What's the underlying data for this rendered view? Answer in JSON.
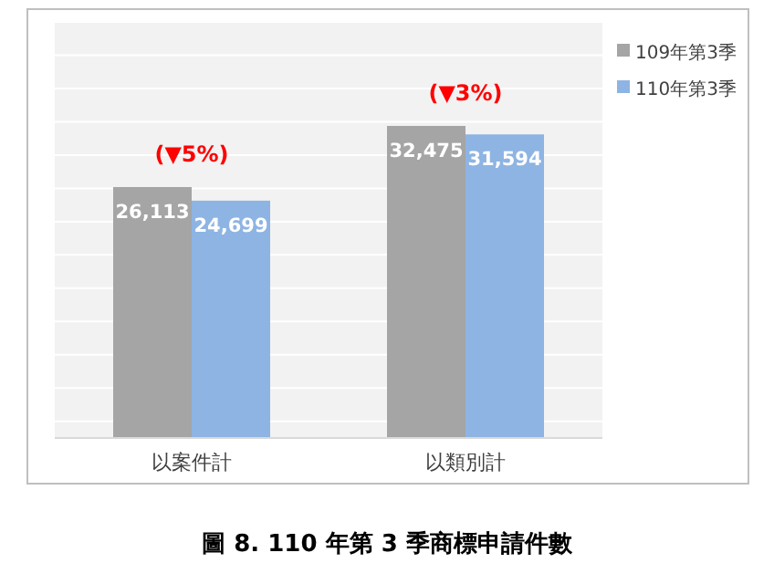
{
  "chart_data": {
    "type": "bar",
    "title": "圖 8. 110 年第 3 季商標申請件數",
    "categories": [
      "以案件計",
      "以類別計"
    ],
    "series": [
      {
        "name": "109年第3季",
        "color": "#a5a5a5",
        "values": [
          26113,
          32475
        ],
        "value_labels": [
          "26,113",
          "32,475"
        ]
      },
      {
        "name": "110年第3季",
        "color": "#8eb4e3",
        "values": [
          24699,
          31594
        ],
        "value_labels": [
          "24,699",
          "31,594"
        ]
      }
    ],
    "grid": "y",
    "legend": "top right",
    "annotations": [
      "(▼5%)",
      "(▼3%)"
    ]
  }
}
